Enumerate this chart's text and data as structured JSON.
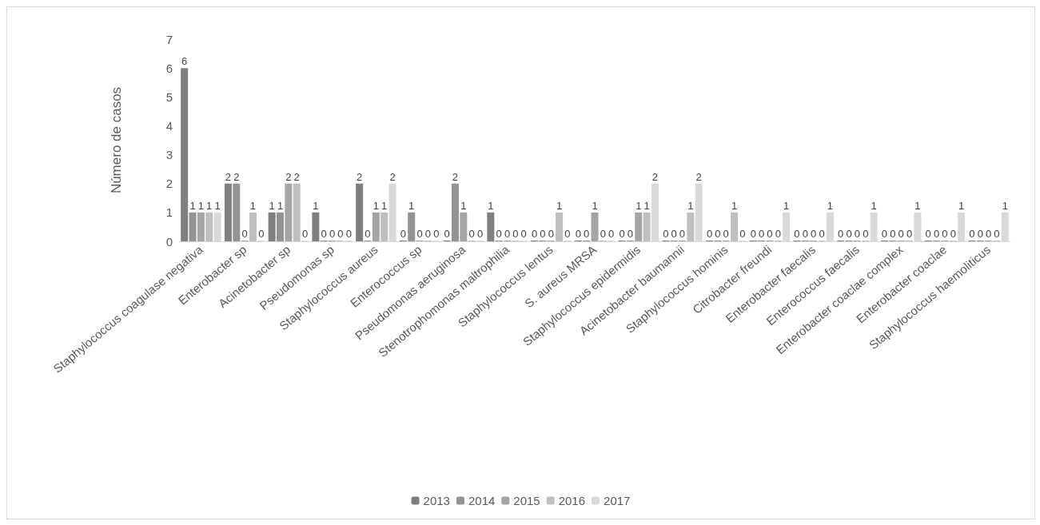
{
  "chart_data": {
    "type": "bar",
    "ylabel": "Número de casos",
    "categories": [
      "Staphylococcus coagulase negativa",
      "Enterobacter sp",
      "Acinetobacter sp",
      "Pseudomonas sp",
      "Staphylococcus aureus",
      "Enterococcus sp",
      "Pseudomonas aeruginosa",
      "Stenotrophomonas maltrophilia",
      "Staphylococcus lentus",
      "S. aureus MRSA",
      "Staphylococcus epidermidis",
      "Acinetobacter baumannii",
      "Staphylococcus hominis",
      "Citrobacter freundi",
      "Enterobacter faecalis",
      "Enterococcus faecalis",
      "Enterobacter coaclae complex",
      "Enterobacter coaclae",
      "Staphylococcus haemoliticus"
    ],
    "series": [
      {
        "name": "2013",
        "color": "#7f7f7f",
        "values": [
          6,
          2,
          1,
          1,
          2,
          0,
          0,
          1,
          0,
          0,
          0,
          0,
          0,
          0,
          0,
          0,
          0,
          0,
          0
        ]
      },
      {
        "name": "2014",
        "color": "#939393",
        "values": [
          1,
          2,
          1,
          0,
          0,
          1,
          2,
          0,
          0,
          0,
          0,
          0,
          0,
          0,
          0,
          0,
          0,
          0,
          0
        ]
      },
      {
        "name": "2015",
        "color": "#a5a5a5",
        "values": [
          1,
          0,
          2,
          0,
          1,
          0,
          1,
          0,
          0,
          1,
          1,
          0,
          0,
          0,
          0,
          0,
          0,
          0,
          0
        ]
      },
      {
        "name": "2016",
        "color": "#bfbfbf",
        "values": [
          1,
          1,
          2,
          0,
          1,
          0,
          0,
          0,
          1,
          0,
          1,
          1,
          1,
          0,
          0,
          0,
          0,
          0,
          0
        ]
      },
      {
        "name": "2017",
        "color": "#d9d9d9",
        "values": [
          1,
          0,
          0,
          0,
          2,
          0,
          0,
          0,
          0,
          0,
          2,
          2,
          0,
          1,
          1,
          1,
          1,
          1,
          1
        ]
      }
    ],
    "ylim": [
      0,
      7
    ],
    "yticks": [
      0,
      1,
      2,
      3,
      4,
      5,
      6,
      7
    ],
    "grid": false,
    "legend": "bottom",
    "data_labels": true
  }
}
